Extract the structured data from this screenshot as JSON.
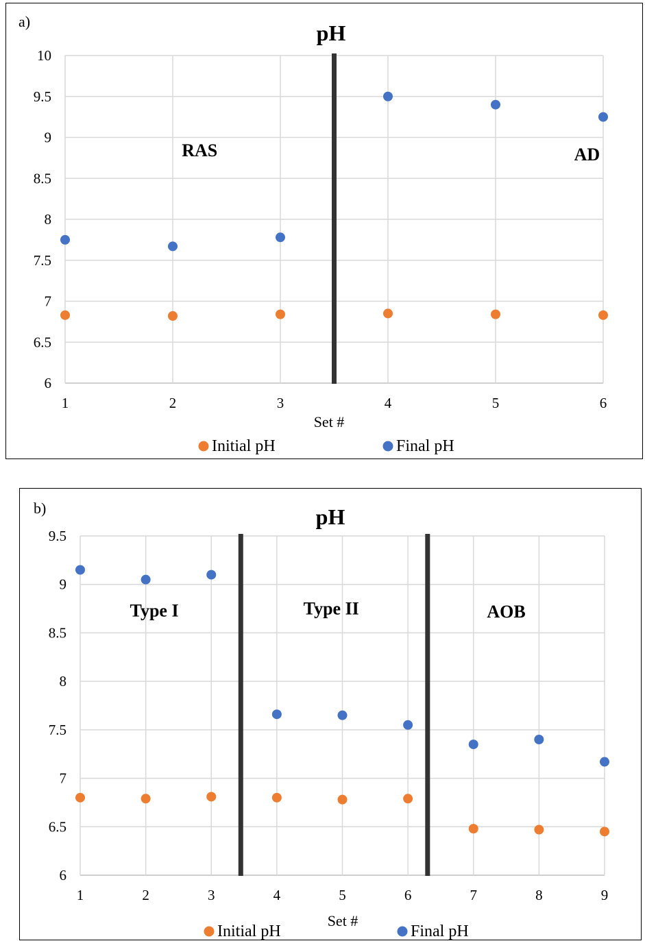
{
  "chart_data": [
    {
      "panel_label": "a)",
      "type": "scatter",
      "title": "pH",
      "xlabel": "Set #",
      "xlim": [
        1,
        6
      ],
      "xticks": [
        "1",
        "2",
        "3",
        "4",
        "5",
        "6"
      ],
      "ylim": [
        6,
        10
      ],
      "yticks": [
        "6",
        "6.5",
        "7",
        "7.5",
        "8",
        "8.5",
        "9",
        "9.5",
        "10"
      ],
      "grid": true,
      "legend_position": "bottom",
      "dividers": [
        3.5
      ],
      "annotations": [
        {
          "text": "RAS",
          "x": 2.25,
          "y": 8.77
        },
        {
          "text": "AD",
          "x": 5.85,
          "y": 8.72
        }
      ],
      "series": [
        {
          "name": "Initial pH",
          "color": "#ed7d31",
          "x": [
            1,
            2,
            3,
            4,
            5,
            6
          ],
          "y": [
            6.83,
            6.82,
            6.84,
            6.85,
            6.84,
            6.83
          ]
        },
        {
          "name": "Final pH",
          "color": "#4472c4",
          "x": [
            1,
            2,
            3,
            4,
            5,
            6
          ],
          "y": [
            7.75,
            7.67,
            7.78,
            9.5,
            9.4,
            9.25
          ]
        }
      ]
    },
    {
      "panel_label": "b)",
      "type": "scatter",
      "title": "pH",
      "xlabel": "Set #",
      "xlim": [
        1,
        9
      ],
      "xticks": [
        "1",
        "2",
        "3",
        "4",
        "5",
        "6",
        "7",
        "8",
        "9"
      ],
      "ylim": [
        6,
        9.5
      ],
      "yticks": [
        "6",
        "6.5",
        "7",
        "7.5",
        "8",
        "8.5",
        "9",
        "9.5"
      ],
      "grid": true,
      "legend_position": "bottom",
      "dividers": [
        3.45,
        6.3
      ],
      "annotations": [
        {
          "text": "Type I",
          "x": 2.13,
          "y": 8.67
        },
        {
          "text": "Type II",
          "x": 4.83,
          "y": 8.69
        },
        {
          "text": "AOB",
          "x": 7.5,
          "y": 8.66
        }
      ],
      "series": [
        {
          "name": "Initial pH",
          "color": "#ed7d31",
          "x": [
            1,
            2,
            3,
            4,
            5,
            6,
            7,
            8,
            9
          ],
          "y": [
            6.8,
            6.79,
            6.81,
            6.8,
            6.78,
            6.79,
            6.48,
            6.47,
            6.45
          ]
        },
        {
          "name": "Final pH",
          "color": "#4472c4",
          "x": [
            1,
            2,
            3,
            4,
            5,
            6,
            7,
            8,
            9
          ],
          "y": [
            9.15,
            9.05,
            9.1,
            7.66,
            7.65,
            7.55,
            7.35,
            7.4,
            7.17
          ]
        }
      ]
    }
  ]
}
